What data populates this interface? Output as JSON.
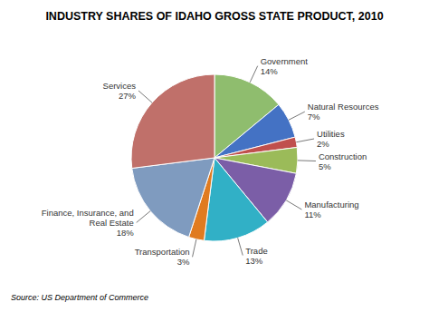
{
  "chart_data": {
    "type": "pie",
    "title": "INDUSTRY SHARES OF IDAHO GROSS STATE PRODUCT, 2010",
    "annotations": [
      "Source: US Department of Commerce"
    ],
    "categories": [
      "Government",
      "Natural Resources",
      "Utilities",
      "Construction",
      "Manufacturing",
      "Trade",
      "Transportation",
      "Finance, Insurance, and\nReal Estate",
      "Services"
    ],
    "values": [
      14,
      7,
      2,
      5,
      11,
      13,
      3,
      18,
      27
    ],
    "value_labels": [
      "14%",
      "7%",
      "2%",
      "5%",
      "11%",
      "13%",
      "3%",
      "18%",
      "27%"
    ],
    "colors": [
      "#8FBD6E",
      "#4472C4",
      "#C0504D",
      "#9BBB59",
      "#7B5EA7",
      "#31B0C6",
      "#E07B20",
      "#7F9BBF",
      "#C0706A"
    ]
  }
}
